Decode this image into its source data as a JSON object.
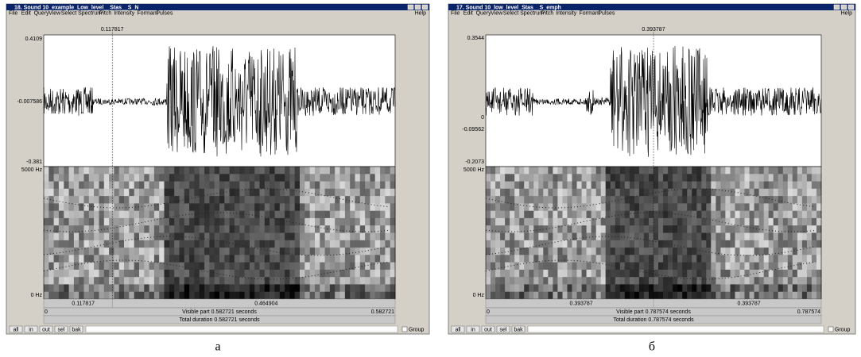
{
  "windows": [
    {
      "title": "18. Sound 10_example_Low_level__Stas__S_N",
      "menu": [
        "File",
        "Edit",
        "Query",
        "View",
        "Select",
        "Spectrum",
        "Pitch",
        "Intensity",
        "Formant",
        "Pulses"
      ],
      "help": "Help",
      "cursor": "0.117817",
      "wave_labels": [
        "0.4109",
        "-0.007586",
        "-0.381"
      ],
      "spec_labels": [
        "5000 Hz",
        "0 Hz"
      ],
      "time_row": [
        "0.117817",
        "0.464904"
      ],
      "visible_row": [
        "0",
        "Visible part 0.582721 seconds",
        "0.582721"
      ],
      "total": "Total duration 0.582721 seconds",
      "buttons": [
        "all",
        "in",
        "out",
        "sel",
        "bak"
      ],
      "group": "Group",
      "caption": "а"
    },
    {
      "title": "17. Sound 10_low_level_Stas__S_emph",
      "menu": [
        "File",
        "Edit",
        "Query",
        "View",
        "Select",
        "Spectrum",
        "Pitch",
        "Intensity",
        "Formant",
        "Pulses"
      ],
      "help": "Help",
      "cursor": "0.393787",
      "wave_labels": [
        "0.3544",
        "0",
        "-0.09562",
        "-0.2073"
      ],
      "spec_labels": [
        "5000 Hz",
        "0 Hz"
      ],
      "time_row": [
        "0.393787",
        "0.393787"
      ],
      "visible_row": [
        "0",
        "Visible part 0.787574 seconds",
        "0.787574"
      ],
      "total": "Total duration 0.787574 seconds",
      "buttons": [
        "all",
        "in",
        "out",
        "sel",
        "bak"
      ],
      "group": "Group",
      "caption": "б"
    }
  ]
}
